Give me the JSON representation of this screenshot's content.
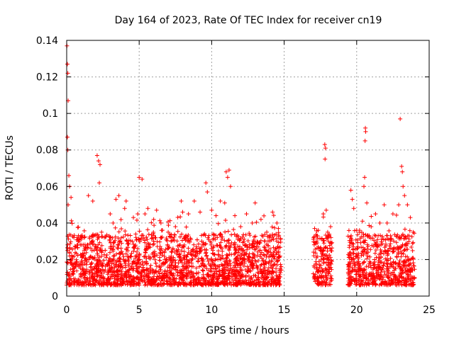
{
  "chart_data": {
    "type": "scatter",
    "title": "Day 164 of 2023, Rate Of TEC Index for receiver cn19",
    "xlabel": "GPS time / hours",
    "ylabel": "ROTI / TECUs",
    "xlim": [
      0,
      25
    ],
    "ylim": [
      0,
      0.14
    ],
    "grid": true,
    "marker": "+",
    "color": "#ff0000",
    "x_ticks": [
      "0",
      "5",
      "10",
      "15",
      "20",
      "25"
    ],
    "y_ticks": [
      "0",
      "0.02",
      "0.04",
      "0.06",
      "0.08",
      "0.1",
      "0.12",
      "0.14"
    ],
    "x_tick_values": [
      0,
      5,
      10,
      15,
      20,
      25
    ],
    "y_tick_values": [
      0,
      0.02,
      0.04,
      0.06,
      0.08,
      0.1,
      0.12,
      0.14
    ],
    "series": [
      {
        "name": "ROTI",
        "note": "Dense scatter of ROTI samples; baseline ~0.005-0.035 TECU with frequent excursions. Data gaps at ~14.8-17.0 h and ~18.3-19.4 h.",
        "active_segments": [
          [
            0.0,
            14.8
          ],
          [
            17.0,
            18.3
          ],
          [
            19.4,
            24.0
          ]
        ],
        "points": [
          [
            0.02,
            0.137
          ],
          [
            0.05,
            0.127
          ],
          [
            0.08,
            0.122
          ],
          [
            0.1,
            0.107
          ],
          [
            0.05,
            0.087
          ],
          [
            0.08,
            0.08
          ],
          [
            0.15,
            0.066
          ],
          [
            0.2,
            0.06
          ],
          [
            0.3,
            0.054
          ],
          [
            0.1,
            0.05
          ],
          [
            1.5,
            0.055
          ],
          [
            1.8,
            0.052
          ],
          [
            2.1,
            0.077
          ],
          [
            2.2,
            0.074
          ],
          [
            2.3,
            0.072
          ],
          [
            2.25,
            0.062
          ],
          [
            3.0,
            0.045
          ],
          [
            3.2,
            0.04
          ],
          [
            3.4,
            0.053
          ],
          [
            3.6,
            0.055
          ],
          [
            4.0,
            0.048
          ],
          [
            4.1,
            0.052
          ],
          [
            4.6,
            0.043
          ],
          [
            4.9,
            0.045
          ],
          [
            5.0,
            0.065
          ],
          [
            5.2,
            0.064
          ],
          [
            5.4,
            0.045
          ],
          [
            5.6,
            0.048
          ],
          [
            6.0,
            0.042
          ],
          [
            6.2,
            0.047
          ],
          [
            6.5,
            0.04
          ],
          [
            7.0,
            0.035
          ],
          [
            7.5,
            0.038
          ],
          [
            7.9,
            0.052
          ],
          [
            8.0,
            0.046
          ],
          [
            8.4,
            0.045
          ],
          [
            8.8,
            0.052
          ],
          [
            9.2,
            0.046
          ],
          [
            9.6,
            0.062
          ],
          [
            9.7,
            0.057
          ],
          [
            10.0,
            0.047
          ],
          [
            10.3,
            0.044
          ],
          [
            10.6,
            0.052
          ],
          [
            10.9,
            0.051
          ],
          [
            11.0,
            0.068
          ],
          [
            11.1,
            0.065
          ],
          [
            11.2,
            0.069
          ],
          [
            11.3,
            0.06
          ],
          [
            11.6,
            0.044
          ],
          [
            12.0,
            0.038
          ],
          [
            12.4,
            0.045
          ],
          [
            12.8,
            0.04
          ],
          [
            13.0,
            0.051
          ],
          [
            13.4,
            0.042
          ],
          [
            13.8,
            0.035
          ],
          [
            14.2,
            0.046
          ],
          [
            14.5,
            0.04
          ],
          [
            14.6,
            0.037
          ],
          [
            17.1,
            0.037
          ],
          [
            17.3,
            0.033
          ],
          [
            17.5,
            0.025
          ],
          [
            17.7,
            0.045
          ],
          [
            17.8,
            0.083
          ],
          [
            17.85,
            0.081
          ],
          [
            17.82,
            0.075
          ],
          [
            17.9,
            0.047
          ],
          [
            18.0,
            0.035
          ],
          [
            18.2,
            0.038
          ],
          [
            19.6,
            0.058
          ],
          [
            19.7,
            0.053
          ],
          [
            19.8,
            0.048
          ],
          [
            20.0,
            0.036
          ],
          [
            20.2,
            0.035
          ],
          [
            20.4,
            0.041
          ],
          [
            20.5,
            0.06
          ],
          [
            20.55,
            0.065
          ],
          [
            20.6,
            0.092
          ],
          [
            20.62,
            0.09
          ],
          [
            20.58,
            0.085
          ],
          [
            20.7,
            0.051
          ],
          [
            21.0,
            0.038
          ],
          [
            21.3,
            0.045
          ],
          [
            21.6,
            0.04
          ],
          [
            21.9,
            0.05
          ],
          [
            22.1,
            0.04
          ],
          [
            22.5,
            0.045
          ],
          [
            22.9,
            0.05
          ],
          [
            23.0,
            0.097
          ],
          [
            23.1,
            0.071
          ],
          [
            23.15,
            0.068
          ],
          [
            23.2,
            0.06
          ],
          [
            23.3,
            0.055
          ],
          [
            23.5,
            0.05
          ],
          [
            23.7,
            0.043
          ],
          [
            23.9,
            0.035
          ]
        ]
      }
    ]
  }
}
